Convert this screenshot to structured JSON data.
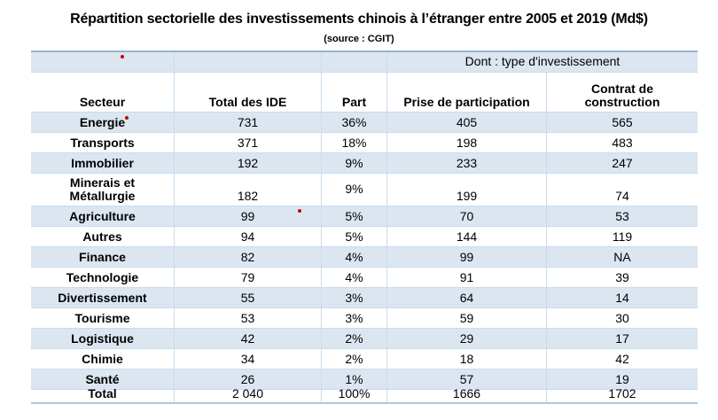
{
  "title": "Répartition sectorielle des investissements chinois à l’étranger entre 2005 et 2019 (Md$)",
  "subtitle": "(source : CGIT)",
  "colors": {
    "band_blue": "#dce6f1",
    "grid_blue": "#c9dbee",
    "top_border_blue": "#95b3d7",
    "marker_red": "#c00000"
  },
  "markers": {
    "red_dot_count": 3,
    "shape": "small red dot annotation markers"
  },
  "table": {
    "header_group": "Dont : type d'investissement",
    "columns": [
      "Secteur",
      "Total des IDE",
      "Part",
      "Prise de participation",
      "Contrat de construction"
    ],
    "rows": [
      {
        "secteur": "Energie",
        "total": "731",
        "part": "36%",
        "prise": "405",
        "contrat": "565"
      },
      {
        "secteur": "Transports",
        "total": "371",
        "part": "18%",
        "prise": "198",
        "contrat": "483"
      },
      {
        "secteur": "Immobilier",
        "total": "192",
        "part": "9%",
        "prise": "233",
        "contrat": "247"
      },
      {
        "secteur": "Minerais et Métallurgie",
        "total": "182",
        "part": "9%",
        "prise": "199",
        "contrat": "74"
      },
      {
        "secteur": "Agriculture",
        "total": "99",
        "part": "5%",
        "prise": "70",
        "contrat": "53"
      },
      {
        "secteur": "Autres",
        "total": "94",
        "part": "5%",
        "prise": "144",
        "contrat": "119"
      },
      {
        "secteur": "Finance",
        "total": "82",
        "part": "4%",
        "prise": "99",
        "contrat": "NA"
      },
      {
        "secteur": "Technologie",
        "total": "79",
        "part": "4%",
        "prise": "91",
        "contrat": "39"
      },
      {
        "secteur": "Divertissement",
        "total": "55",
        "part": "3%",
        "prise": "64",
        "contrat": "14"
      },
      {
        "secteur": "Tourisme",
        "total": "53",
        "part": "3%",
        "prise": "59",
        "contrat": "30"
      },
      {
        "secteur": "Logistique",
        "total": "42",
        "part": "2%",
        "prise": "29",
        "contrat": "17"
      },
      {
        "secteur": "Chimie",
        "total": "34",
        "part": "2%",
        "prise": "18",
        "contrat": "42"
      },
      {
        "secteur": "Santé",
        "total": "26",
        "part": "1%",
        "prise": "57",
        "contrat": "19"
      },
      {
        "secteur": "Total",
        "total": "2 040",
        "part": "100%",
        "prise": "1666",
        "contrat": "1702"
      }
    ]
  }
}
